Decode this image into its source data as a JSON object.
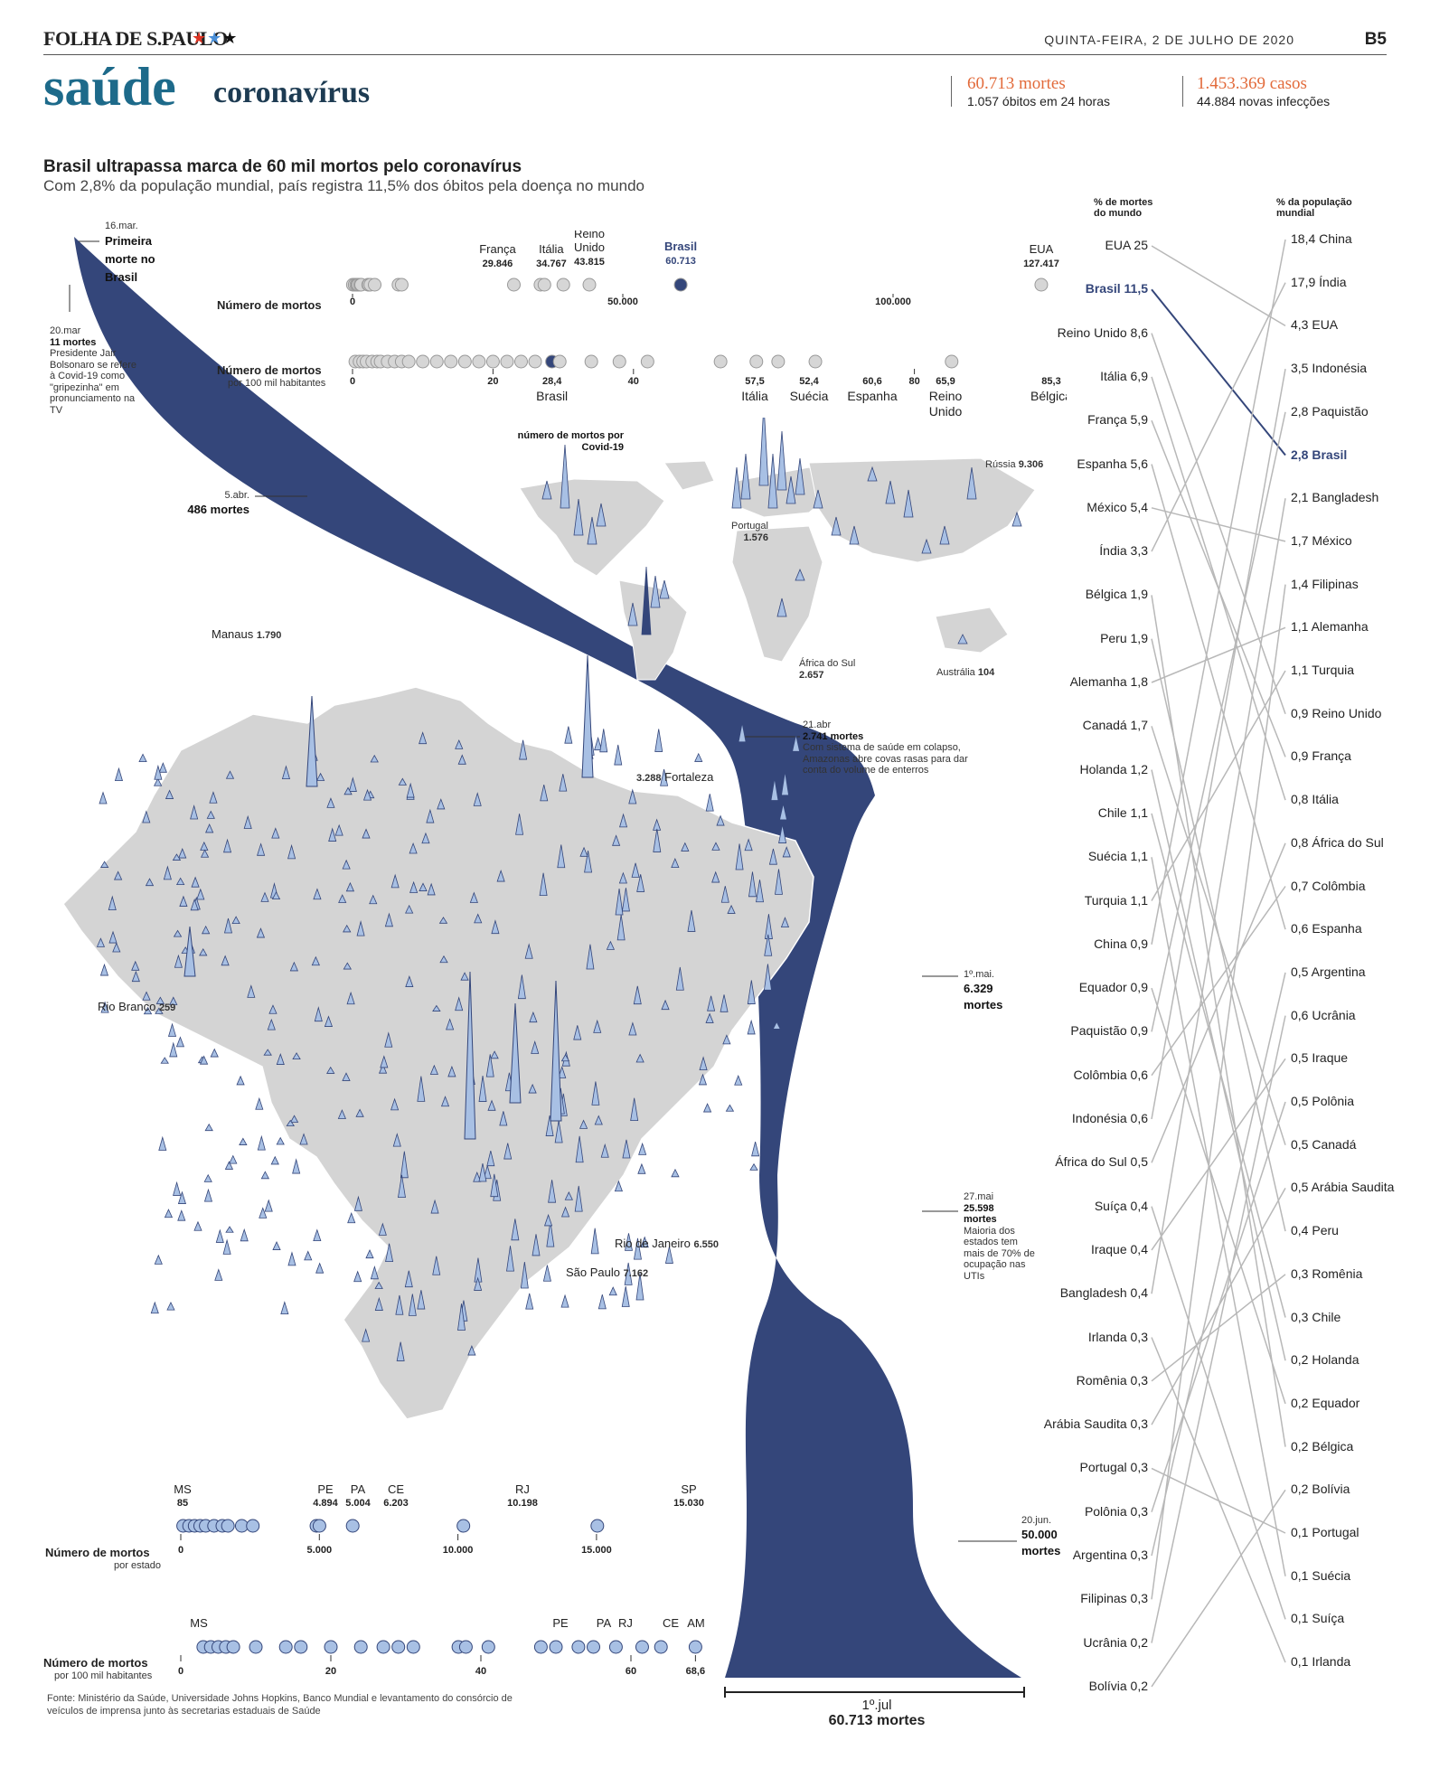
{
  "masthead": {
    "name": "FOLHA DE S.PAULO",
    "stars": [
      "★",
      "★",
      "★"
    ],
    "date": "QUINTA-FEIRA, 2 DE JULHO DE 2020",
    "page": "B5"
  },
  "section": {
    "title": "saúde",
    "subtitle": "coronavírus"
  },
  "stats": {
    "deaths": "60.713 mortes",
    "deaths_sub": "1.057 óbitos em 24 horas",
    "cases": "1.453.369 casos",
    "cases_sub": "44.884 novas infecções"
  },
  "headline": "Brasil ultrapassa marca de 60 mil mortos pelo coronavírus",
  "subhead": "Com 2,8% da população mundial, país registra 11,5% dos óbitos pela doença no mundo",
  "colors": {
    "navy": "#34467a",
    "dot_grey": "#d6d6d6",
    "dot_blue": "#a8c0e4",
    "accent": "#e26a3a",
    "map": "#d4d4d4"
  },
  "timeline": {
    "first": {
      "date": "16.mar.",
      "text": "Primeira morte no Brasil"
    },
    "mar20": {
      "date": "20.mar",
      "deaths": "11 mortes",
      "note": "Presidente Jair Bolsonaro se refere à Covid-19 como \"gripezinha\" em pronunciamento na TV"
    },
    "apr5": {
      "date": "5.abr.",
      "deaths": "486 mortes"
    },
    "apr21": {
      "date": "21.abr",
      "deaths": "2.741 mortes",
      "note": "Com sistema de saúde em colapso, Amazonas abre covas rasas para dar conta do volume de enterros"
    },
    "may1": {
      "date": "1º.mai.",
      "deaths": "6.329",
      "unit": "mortes"
    },
    "may27": {
      "date": "27.mai",
      "deaths": "25.598",
      "unit": "mortes",
      "note": "Maioria dos estados tem mais de 70% de ocupação nas UTIs"
    },
    "jun20": {
      "date": "20.jun.",
      "deaths": "50.000",
      "unit": "mortes"
    },
    "jul1": {
      "date": "1º.jul",
      "deaths": "60.713  mortes"
    }
  },
  "world_deaths": {
    "title": "Número de mortos",
    "ticks": [
      "0",
      "50.000",
      "100.000"
    ],
    "labels": [
      {
        "name": "França",
        "value": "29.846"
      },
      {
        "name": "Itália",
        "value": "34.767"
      },
      {
        "name": "Reino Unido",
        "value": "43.815"
      },
      {
        "name": "Brasil",
        "value": "60.713"
      },
      {
        "name": "EUA",
        "value": "127.417"
      }
    ]
  },
  "world_per100k": {
    "title": "Número de mortos",
    "sub": "por 100 mil habitantes",
    "ticks": [
      "0",
      "20",
      "40",
      "80"
    ],
    "labels": [
      {
        "name": "Brasil",
        "value": "28,4"
      },
      {
        "name": "Itália",
        "value": "57,5"
      },
      {
        "name": "Suécia",
        "value": "52,4"
      },
      {
        "name": "Espanha",
        "value": "60,6"
      },
      {
        "name": "Reino Unido",
        "value": "65,9"
      },
      {
        "name": "Bélgica",
        "value": "85,3"
      }
    ]
  },
  "world_map": {
    "caption": "número de mortos por Covid-19",
    "russia": {
      "name": "Rússia",
      "value": "9.306"
    },
    "portugal": {
      "name": "Portugal",
      "value": "1.576"
    },
    "south_africa": {
      "name": "África do Sul",
      "value": "2.657"
    },
    "australia": {
      "name": "Austrália",
      "value": "104"
    }
  },
  "brazil_map": {
    "manaus": {
      "name": "Manaus",
      "value": "1.790"
    },
    "fortaleza": {
      "name": "Fortaleza",
      "value": "3.288"
    },
    "rio_branco": {
      "name": "Rio Branco",
      "value": "259"
    },
    "rio": {
      "name": "Rio de Janeiro",
      "value": "6.550"
    },
    "sp": {
      "name": "São Paulo",
      "value": "7.162"
    }
  },
  "states_deaths": {
    "title": "Número de mortos",
    "sub": "por estado",
    "ticks": [
      "0",
      "5.000",
      "10.000",
      "15.000"
    ],
    "labels": [
      {
        "name": "MS",
        "value": "85"
      },
      {
        "name": "PE",
        "value": "4.894"
      },
      {
        "name": "PA",
        "value": "5.004"
      },
      {
        "name": "CE",
        "value": "6.203"
      },
      {
        "name": "RJ",
        "value": "10.198"
      },
      {
        "name": "SP",
        "value": "15.030"
      }
    ]
  },
  "states_per100k": {
    "title": "Número de mortos",
    "sub": "por 100 mil habitantes",
    "ticks": [
      "0",
      "20",
      "40",
      "60",
      "68,6"
    ],
    "labels": [
      "MS",
      "PE",
      "PA",
      "RJ",
      "CE",
      "AM"
    ]
  },
  "slope": {
    "left_title": "% de mortes do mundo",
    "right_title": "% da população mundial",
    "left": [
      {
        "name": "EUA",
        "value": "25"
      },
      {
        "name": "Brasil",
        "value": "11,5"
      },
      {
        "name": "Reino Unido",
        "value": "8,6"
      },
      {
        "name": "Itália",
        "value": "6,9"
      },
      {
        "name": "França",
        "value": "5,9"
      },
      {
        "name": "Espanha",
        "value": "5,6"
      },
      {
        "name": "México",
        "value": "5,4"
      },
      {
        "name": "Índia",
        "value": "3,3"
      },
      {
        "name": "Bélgica",
        "value": "1,9"
      },
      {
        "name": "Peru",
        "value": "1,9"
      },
      {
        "name": "Alemanha",
        "value": "1,8"
      },
      {
        "name": "Canadá",
        "value": "1,7"
      },
      {
        "name": "Holanda",
        "value": "1,2"
      },
      {
        "name": "Chile",
        "value": "1,1"
      },
      {
        "name": "Suécia",
        "value": "1,1"
      },
      {
        "name": "Turquia",
        "value": "1,1"
      },
      {
        "name": "China",
        "value": "0,9"
      },
      {
        "name": "Equador",
        "value": "0,9"
      },
      {
        "name": "Paquistão",
        "value": "0,9"
      },
      {
        "name": "Colômbia",
        "value": "0,6"
      },
      {
        "name": "Indonésia",
        "value": "0,6"
      },
      {
        "name": "África do Sul",
        "value": "0,5"
      },
      {
        "name": "Suíça",
        "value": "0,4"
      },
      {
        "name": "Iraque",
        "value": "0,4"
      },
      {
        "name": "Bangladesh",
        "value": "0,4"
      },
      {
        "name": "Irlanda",
        "value": "0,3"
      },
      {
        "name": "Romênia",
        "value": "0,3"
      },
      {
        "name": "Arábia Saudita",
        "value": "0,3"
      },
      {
        "name": "Portugal",
        "value": "0,3"
      },
      {
        "name": "Polônia",
        "value": "0,3"
      },
      {
        "name": "Argentina",
        "value": "0,3"
      },
      {
        "name": "Filipinas",
        "value": "0,3"
      },
      {
        "name": "Ucrânia",
        "value": "0,2"
      },
      {
        "name": "Bolívia",
        "value": "0,2"
      }
    ],
    "right": [
      {
        "name": "China",
        "value": "18,4"
      },
      {
        "name": "Índia",
        "value": "17,9"
      },
      {
        "name": "EUA",
        "value": "4,3"
      },
      {
        "name": "Indonésia",
        "value": "3,5"
      },
      {
        "name": "Paquistão",
        "value": "2,8"
      },
      {
        "name": "Brasil",
        "value": "2,8"
      },
      {
        "name": "Bangladesh",
        "value": "2,1"
      },
      {
        "name": "México",
        "value": "1,7"
      },
      {
        "name": "Filipinas",
        "value": "1,4"
      },
      {
        "name": "Alemanha",
        "value": "1,1"
      },
      {
        "name": "Turquia",
        "value": "1,1"
      },
      {
        "name": "Reino Unido",
        "value": "0,9"
      },
      {
        "name": "França",
        "value": "0,9"
      },
      {
        "name": "Itália",
        "value": "0,8"
      },
      {
        "name": "África do Sul",
        "value": "0,8"
      },
      {
        "name": "Colômbia",
        "value": "0,7"
      },
      {
        "name": "Espanha",
        "value": "0,6"
      },
      {
        "name": "Argentina",
        "value": "0,5"
      },
      {
        "name": "Ucrânia",
        "value": "0,6"
      },
      {
        "name": "Iraque",
        "value": "0,5"
      },
      {
        "name": "Polônia",
        "value": "0,5"
      },
      {
        "name": "Canadá",
        "value": "0,5"
      },
      {
        "name": "Arábia Saudita",
        "value": "0,5"
      },
      {
        "name": "Peru",
        "value": "0,4"
      },
      {
        "name": "Romênia",
        "value": "0,3"
      },
      {
        "name": "Chile",
        "value": "0,3"
      },
      {
        "name": "Holanda",
        "value": "0,2"
      },
      {
        "name": "Equador",
        "value": "0,2"
      },
      {
        "name": "Bélgica",
        "value": "0,2"
      },
      {
        "name": "Bolívia",
        "value": "0,2"
      },
      {
        "name": "Portugal",
        "value": "0,1"
      },
      {
        "name": "Suécia",
        "value": "0,1"
      },
      {
        "name": "Suíça",
        "value": "0,1"
      },
      {
        "name": "Irlanda",
        "value": "0,1"
      }
    ]
  },
  "source": "Fonte: Ministério da Saúde, Universidade Johns Hopkins, Banco Mundial e levantamento do consórcio de veículos de imprensa junto às secretarias estaduais de Saúde",
  "chart_data": [
    {
      "type": "area",
      "title": "",
      "x": [
        "16.mar.",
        "20.mar",
        "5.abr.",
        "21.abr",
        "1º.mai.",
        "27.mai",
        "20.jun.",
        "1º.jul"
      ],
      "series": [
        {
          "values": [
            1,
            11,
            486,
            2741,
            6329,
            25598,
            50000,
            60713
          ]
        }
      ]
    },
    {
      "type": "scatter",
      "title": "Número de mortos",
      "xlim": [
        0,
        130000
      ],
      "series": [
        {
          "name": "França",
          "values": [
            29846
          ]
        },
        {
          "name": "Itália",
          "values": [
            34767
          ]
        },
        {
          "name": "Reino Unido",
          "values": [
            43815
          ]
        },
        {
          "name": "Brasil",
          "values": [
            60713
          ]
        },
        {
          "name": "EUA",
          "values": [
            127417
          ]
        }
      ]
    },
    {
      "type": "scatter",
      "title": "Número de mortos por 100 mil habitantes",
      "xlim": [
        0,
        86
      ],
      "series": [
        {
          "name": "Brasil",
          "values": [
            28.4
          ]
        },
        {
          "name": "Suécia",
          "values": [
            52.4
          ]
        },
        {
          "name": "Itália",
          "values": [
            57.5
          ]
        },
        {
          "name": "Espanha",
          "values": [
            60.6
          ]
        },
        {
          "name": "Reino Unido",
          "values": [
            65.9
          ]
        },
        {
          "name": "Bélgica",
          "values": [
            85.3
          ]
        }
      ]
    },
    {
      "type": "scatter",
      "title": "Número de mortos por estado",
      "xlim": [
        0,
        15030
      ],
      "series": [
        {
          "name": "MS",
          "values": [
            85
          ]
        },
        {
          "name": "PE",
          "values": [
            4894
          ]
        },
        {
          "name": "PA",
          "values": [
            5004
          ]
        },
        {
          "name": "CE",
          "values": [
            6203
          ]
        },
        {
          "name": "RJ",
          "values": [
            10198
          ]
        },
        {
          "name": "SP",
          "values": [
            15030
          ]
        }
      ]
    }
  ]
}
